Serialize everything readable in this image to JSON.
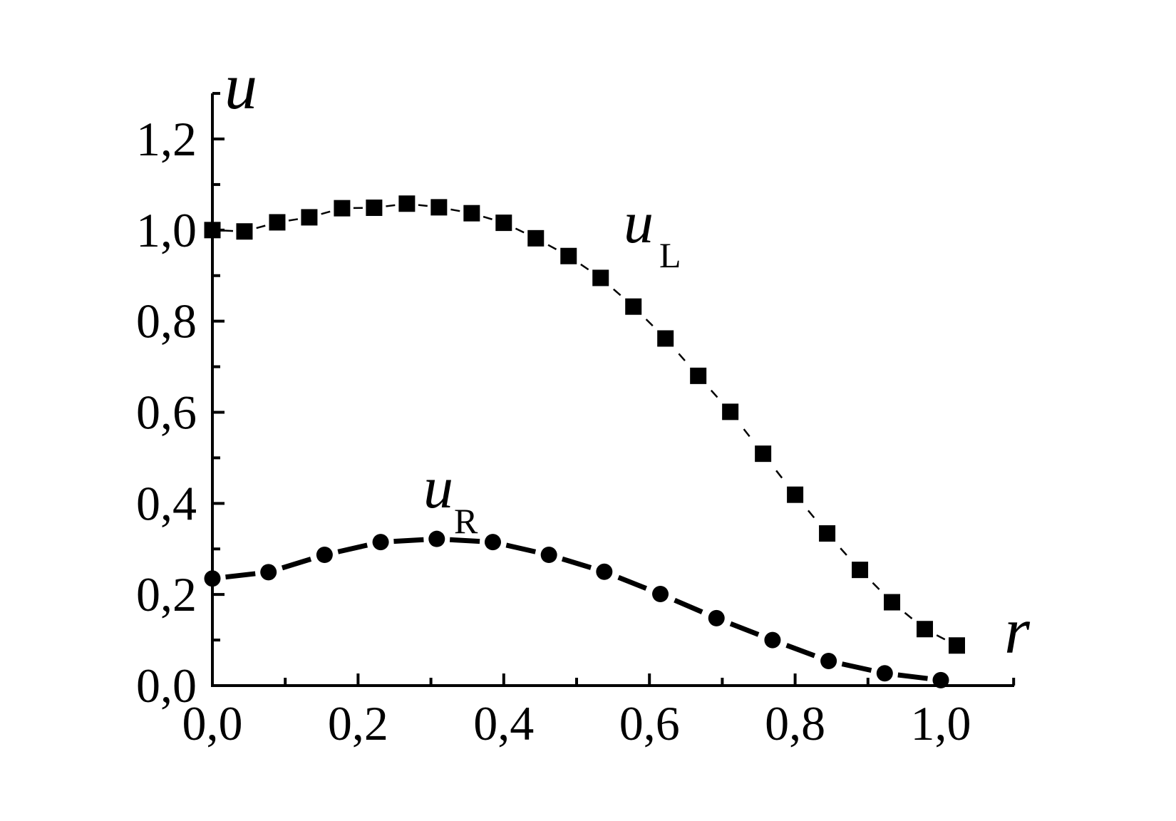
{
  "colors": {
    "foreground": "#000000",
    "background": "#ffffff"
  },
  "chart_data": {
    "type": "line",
    "title": "",
    "xlabel": "r",
    "ylabel": "u",
    "grid": false,
    "legend_position": "inline-annotations",
    "x_axis": {
      "label": "r",
      "range": [
        0.0,
        1.1
      ],
      "decimal_separator": ",",
      "major_ticks": [
        {
          "value": 0.0,
          "label": "0,0"
        },
        {
          "value": 0.2,
          "label": "0,2"
        },
        {
          "value": 0.4,
          "label": "0,4"
        },
        {
          "value": 0.6,
          "label": "0,6"
        },
        {
          "value": 0.8,
          "label": "0,8"
        },
        {
          "value": 1.0,
          "label": "1,0"
        }
      ],
      "minor_ticks": [
        0.1,
        0.3,
        0.5,
        0.7,
        0.9,
        1.1
      ]
    },
    "y_axis": {
      "label": "u",
      "range": [
        0.0,
        1.3
      ],
      "decimal_separator": ",",
      "major_ticks": [
        {
          "value": 0.0,
          "label": "0,0"
        },
        {
          "value": 0.2,
          "label": "0,2"
        },
        {
          "value": 0.4,
          "label": "0,4"
        },
        {
          "value": 0.6,
          "label": "0,6"
        },
        {
          "value": 0.8,
          "label": "0,8"
        },
        {
          "value": 1.0,
          "label": "1,0"
        },
        {
          "value": 1.2,
          "label": "1,2"
        }
      ],
      "minor_ticks": [
        0.1,
        0.3,
        0.5,
        0.7,
        0.9,
        1.1,
        1.3
      ]
    },
    "series": [
      {
        "name": "u_L",
        "label_main": "u",
        "label_sub": "L",
        "marker": "square",
        "line_style": "thin-dashed",
        "x": [
          0.0,
          0.044,
          0.089,
          0.133,
          0.178,
          0.222,
          0.267,
          0.311,
          0.356,
          0.4,
          0.444,
          0.489,
          0.533,
          0.578,
          0.622,
          0.667,
          0.711,
          0.756,
          0.8,
          0.844,
          0.889,
          0.933,
          0.978,
          1.022
        ],
        "y": [
          1.0,
          0.997,
          1.017,
          1.028,
          1.048,
          1.049,
          1.058,
          1.05,
          1.037,
          1.016,
          0.982,
          0.943,
          0.895,
          0.832,
          0.762,
          0.68,
          0.601,
          0.509,
          0.419,
          0.334,
          0.254,
          0.183,
          0.124,
          0.088
        ]
      },
      {
        "name": "u_R",
        "label_main": "u",
        "label_sub": "R",
        "marker": "circle",
        "line_style": "thick-dashed",
        "x": [
          0.0,
          0.077,
          0.154,
          0.231,
          0.308,
          0.385,
          0.462,
          0.538,
          0.615,
          0.692,
          0.769,
          0.846,
          0.923,
          1.0
        ],
        "y": [
          0.235,
          0.249,
          0.287,
          0.315,
          0.322,
          0.315,
          0.287,
          0.25,
          0.201,
          0.148,
          0.1,
          0.054,
          0.027,
          0.012
        ]
      }
    ]
  }
}
